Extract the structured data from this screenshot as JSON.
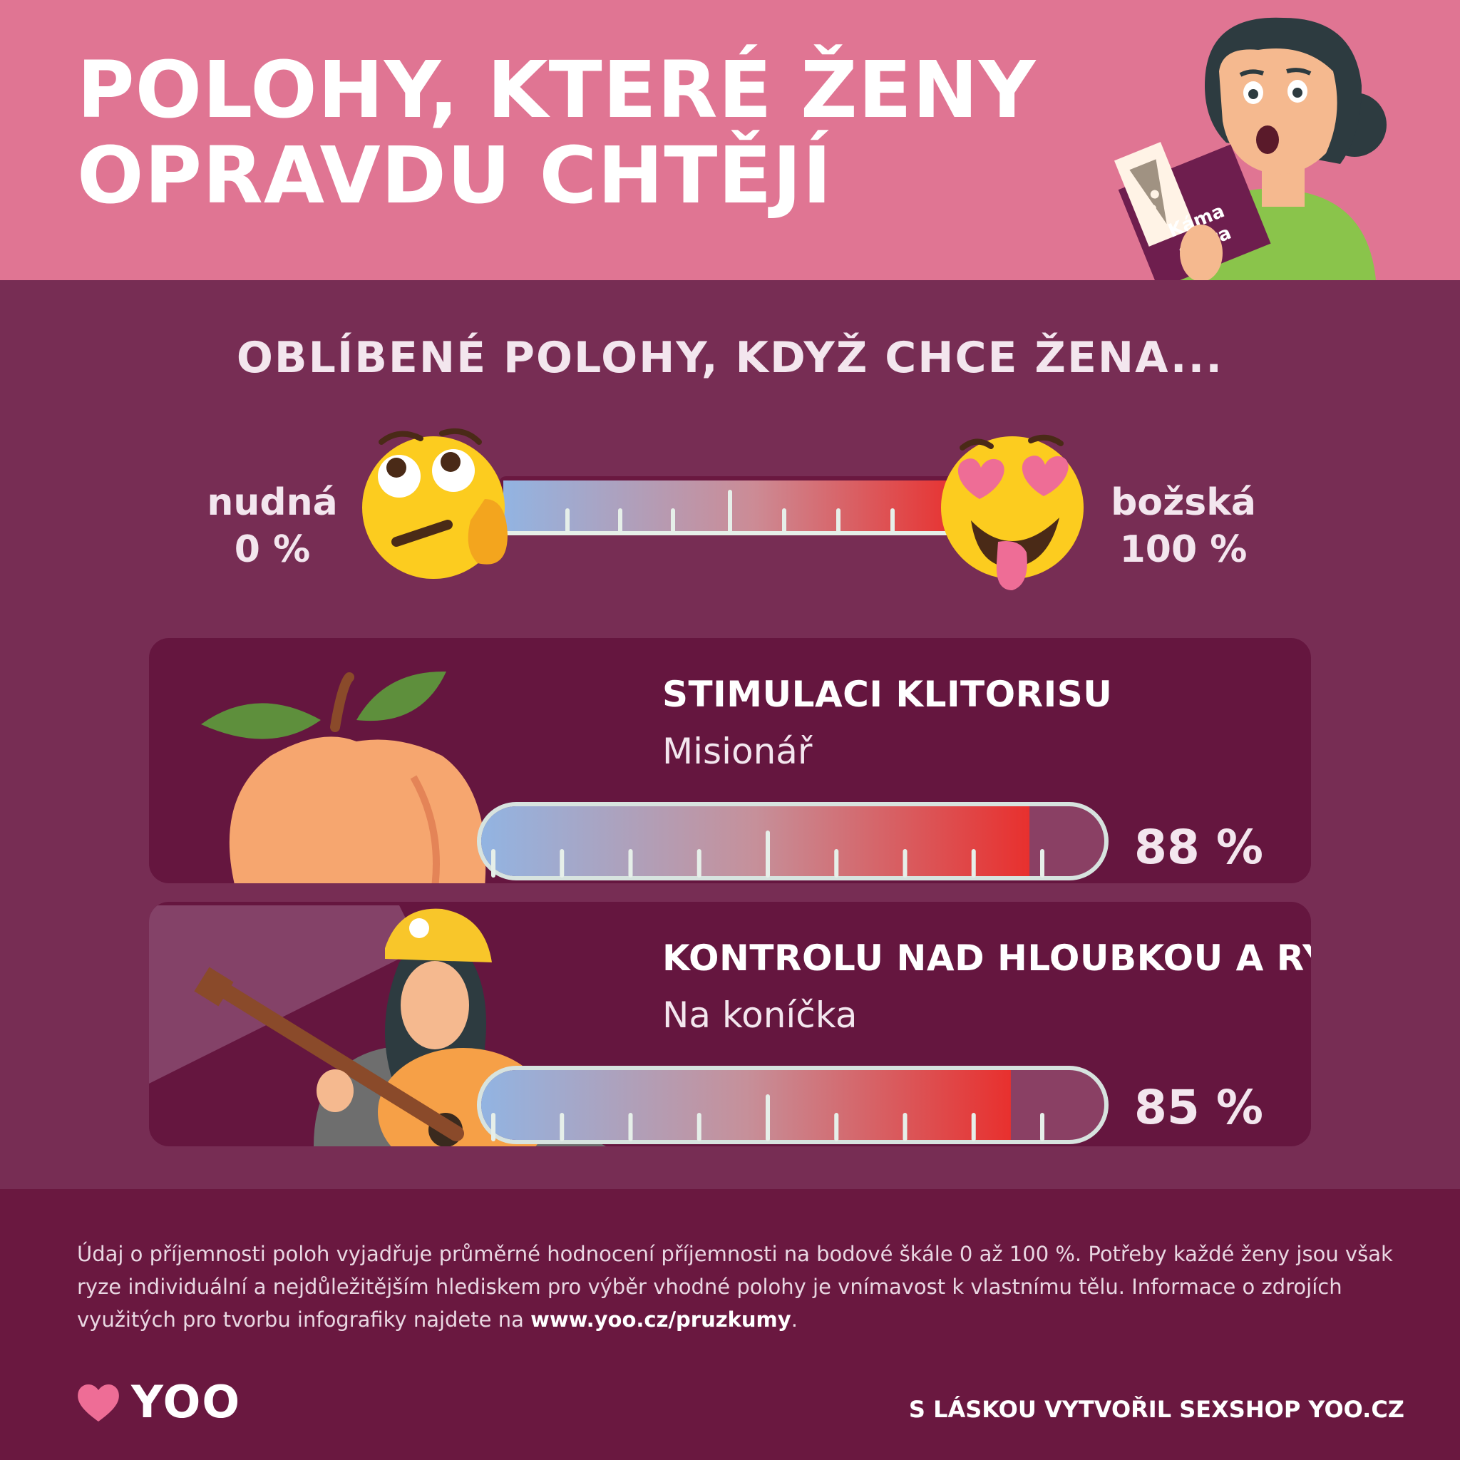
{
  "header": {
    "title_line1": "POLOHY, KTERÉ ŽENY",
    "title_line2": "OPRAVDU CHTĚJÍ",
    "book_line1": "Káma",
    "book_line2": "sútra"
  },
  "subtitle": "OBLÍBENÉ POLOHY, KDYŽ CHCE ŽENA...",
  "scale": {
    "left_label": "nudná",
    "left_value": "0 %",
    "right_label": "božská",
    "right_value": "100 %",
    "left_icon": "bored-face-emoji-icon",
    "right_icon": "heart-eyes-tongue-emoji-icon"
  },
  "colors": {
    "header_bg": "#e07593",
    "main_bg": "#772d54",
    "card_bg": "#65163f",
    "bar_start": "#92b4e2",
    "bar_end": "#e8302e"
  },
  "chart_data": {
    "type": "bar",
    "orientation": "horizontal",
    "xlim": [
      0,
      100
    ],
    "unit": "%",
    "categories": [
      "STIMULACI KLITORISU",
      "KONTROLU NAD HLOUBKOU A RYTMEM"
    ],
    "values": [
      88,
      85
    ],
    "items": [
      {
        "heading": "STIMULACI KLITORISU",
        "position": "Misionář",
        "value": 88,
        "value_label": "88 %",
        "icon": "peach-icon"
      },
      {
        "heading": "KONTROLU NAD HLOUBKOU A RYTMEM",
        "position": "Na koníčka",
        "value": 85,
        "value_label": "85 %",
        "icon": "miner-guitarist-icon"
      }
    ]
  },
  "footer": {
    "note_text": "Údaj o příjemnosti poloh vyjadřuje průměrné hodnocení příjemnosti na bodové škále 0 až 100 %. Potřeby každé ženy jsou však ryze individuální a nejdůležitějším hlediskem pro výběr vhodné polohy je vnímavost k vlastnímu tělu. Informace o zdrojích využitých pro tvorbu infografiky najdete na ",
    "note_link": "www.yoo.cz/pruzkumy",
    "note_end": ".",
    "logo_text": "YOO",
    "credit": "S LÁSKOU VYTVOŘIL SEXSHOP YOO.CZ"
  }
}
